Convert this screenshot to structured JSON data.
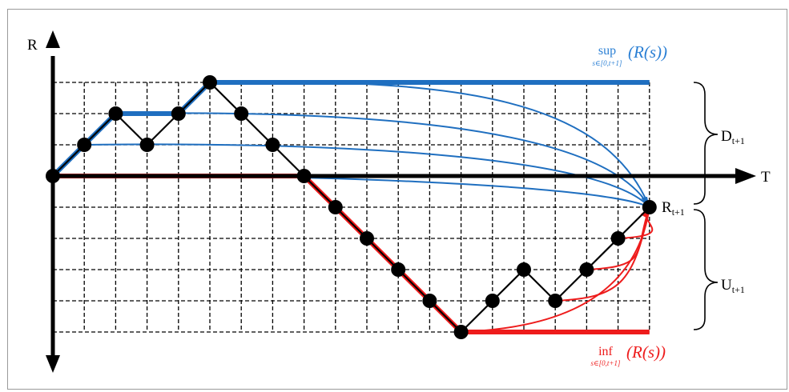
{
  "axes": {
    "y_label": "R",
    "x_label": "T"
  },
  "labels": {
    "sup_word": "sup",
    "sup_sub": "s∈[0,t+1]",
    "sup_arg": "(R(s))",
    "inf_word": "inf",
    "inf_sub": "s∈[0,t+1]",
    "inf_arg": "(R(s))",
    "d_main": "D",
    "d_sub": "t+1",
    "r_main": "R",
    "r_sub": "t+1",
    "u_main": "U",
    "u_sub": "t+1"
  },
  "colors": {
    "axis": "#000000",
    "grid": "#000000",
    "path": "#000000",
    "sup": "#1f6fc0",
    "inf": "#ee1c1c",
    "sup_text": "#2a7fd4",
    "inf_text": "#ee1c1c"
  },
  "walk": [
    0,
    1,
    2,
    1,
    2,
    3,
    2,
    1,
    0,
    -1,
    -2,
    -3,
    -4,
    -5,
    -4,
    -3,
    -4,
    -3,
    -2,
    -1
  ],
  "running_sup": [
    0,
    1,
    2,
    2,
    2,
    3,
    3,
    3,
    3,
    3,
    3,
    3,
    3,
    3,
    3,
    3,
    3,
    3,
    3,
    3
  ],
  "running_inf": [
    0,
    0,
    0,
    0,
    0,
    0,
    0,
    0,
    0,
    -1,
    -2,
    -3,
    -4,
    -5,
    -5,
    -5,
    -5,
    -5,
    -5,
    -5
  ],
  "sup_curve_levels": [
    3,
    2,
    1,
    0
  ],
  "inf_curve_levels": [
    -5,
    -4,
    -3,
    -2
  ]
}
